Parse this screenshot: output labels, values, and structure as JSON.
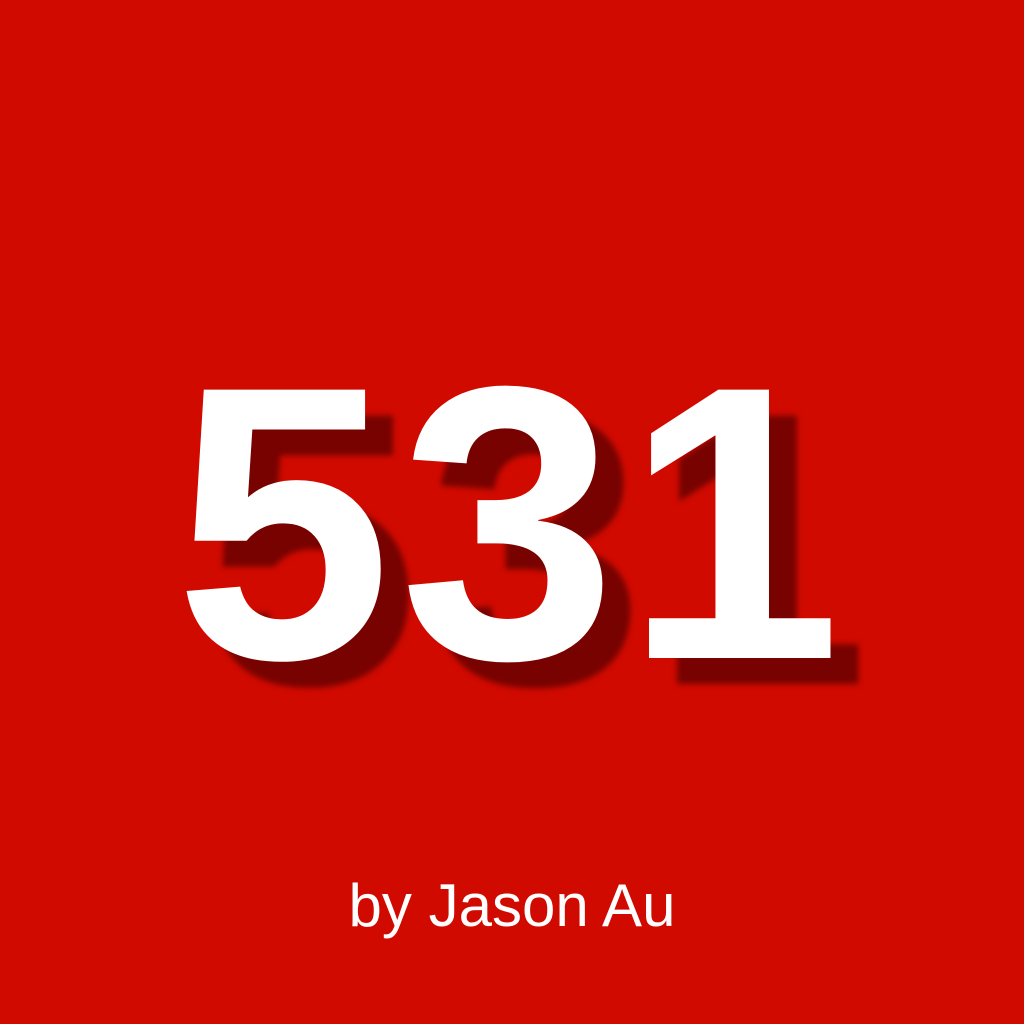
{
  "icon": {
    "number": "531",
    "byline": "by Jason Au",
    "colors": {
      "background": "#D10A00",
      "text": "#FFFFFF",
      "shadow": "#5A0000"
    }
  }
}
